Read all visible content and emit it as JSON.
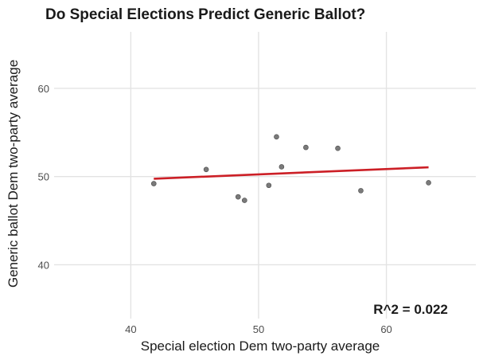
{
  "chart_data": {
    "type": "scatter",
    "title": "Do Special Elections Predict Generic Ballot?",
    "xlabel": "Special election Dem two-party average",
    "ylabel": "Generic ballot Dem two-party average",
    "xlim": [
      34,
      67
    ],
    "ylim": [
      33.9,
      66.4
    ],
    "x_ticks": [
      40,
      50,
      60
    ],
    "y_ticks": [
      40,
      50,
      60
    ],
    "grid": true,
    "points": [
      {
        "x": 41.8,
        "y": 49.2
      },
      {
        "x": 45.9,
        "y": 50.8
      },
      {
        "x": 48.4,
        "y": 47.7
      },
      {
        "x": 48.9,
        "y": 47.3
      },
      {
        "x": 50.8,
        "y": 49.0
      },
      {
        "x": 51.4,
        "y": 54.5
      },
      {
        "x": 51.8,
        "y": 51.1
      },
      {
        "x": 53.7,
        "y": 53.3
      },
      {
        "x": 56.2,
        "y": 53.2
      },
      {
        "x": 58.0,
        "y": 48.4
      },
      {
        "x": 63.3,
        "y": 49.3
      }
    ],
    "fit_line": {
      "x": [
        41.8,
        63.3
      ],
      "y": [
        49.75,
        51.05
      ]
    },
    "annotation": {
      "text": "R^2 = 0.022",
      "x": 61.9,
      "y": 35.0
    },
    "colors": {
      "point": "#6b6b6b",
      "line": "#cc1f26",
      "grid": "#e3e3e3"
    }
  }
}
